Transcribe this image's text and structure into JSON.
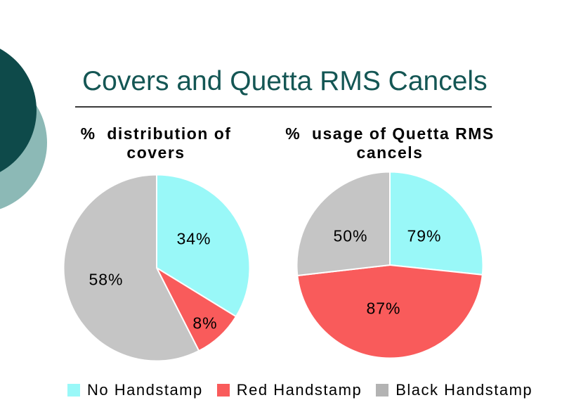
{
  "slide": {
    "title": "Covers and Quetta RMS Cancels",
    "title_color": "#145654",
    "underline_color": "#3b3b3b",
    "background_color": "#ffffff"
  },
  "decor": {
    "dark_circle_color": "#0E4A4A",
    "sage_circle_color": "#8CB9B6"
  },
  "legend": {
    "items": [
      {
        "label": "No Handstamp",
        "color": "#99F8F8"
      },
      {
        "label": "Red Handstamp",
        "color": "#F95B5B"
      },
      {
        "label": "Black Handstamp",
        "color": "#B3B3B3"
      }
    ]
  },
  "chart_data": [
    {
      "type": "pie",
      "title": "% distribution of covers",
      "title_lines": [
        "%  distribution of",
        "covers"
      ],
      "unit": "%",
      "start_angle_deg": 0,
      "legend_position": "bottom-shared",
      "series": [
        {
          "name": "No Handstamp",
          "value": 34,
          "display": "34%",
          "color": "#99F8F8",
          "drawn_angle": 121.5,
          "label_offset": [
            53,
            -41
          ]
        },
        {
          "name": "Red Handstamp",
          "value": 8,
          "display": "8%",
          "color": "#F95B5B",
          "drawn_angle": 31.5,
          "label_offset": [
            69,
            79
          ]
        },
        {
          "name": "Black Handstamp",
          "value": 58,
          "display": "58%",
          "color": "#C5C5C5",
          "drawn_angle": 207,
          "label_offset": [
            -72,
            17
          ]
        }
      ]
    },
    {
      "type": "pie",
      "title": "% usage of Quetta RMS cancels",
      "title_lines": [
        "%  usage of Quetta RMS",
        "cancels"
      ],
      "unit": "%",
      "start_angle_deg": 0,
      "legend_position": "bottom-shared",
      "series": [
        {
          "name": "No Handstamp",
          "value": 79,
          "display": "79%",
          "color": "#99F8F8",
          "drawn_angle": 96,
          "label_offset": [
            49,
            -41
          ]
        },
        {
          "name": "Red Handstamp",
          "value": 87,
          "display": "87%",
          "color": "#F95B5B",
          "drawn_angle": 167.5,
          "label_offset": [
            -9,
            62
          ]
        },
        {
          "name": "Black Handstamp",
          "value": 50,
          "display": "50%",
          "color": "#C5C5C5",
          "drawn_angle": 96.5,
          "label_offset": [
            -56,
            -41
          ]
        }
      ]
    }
  ]
}
